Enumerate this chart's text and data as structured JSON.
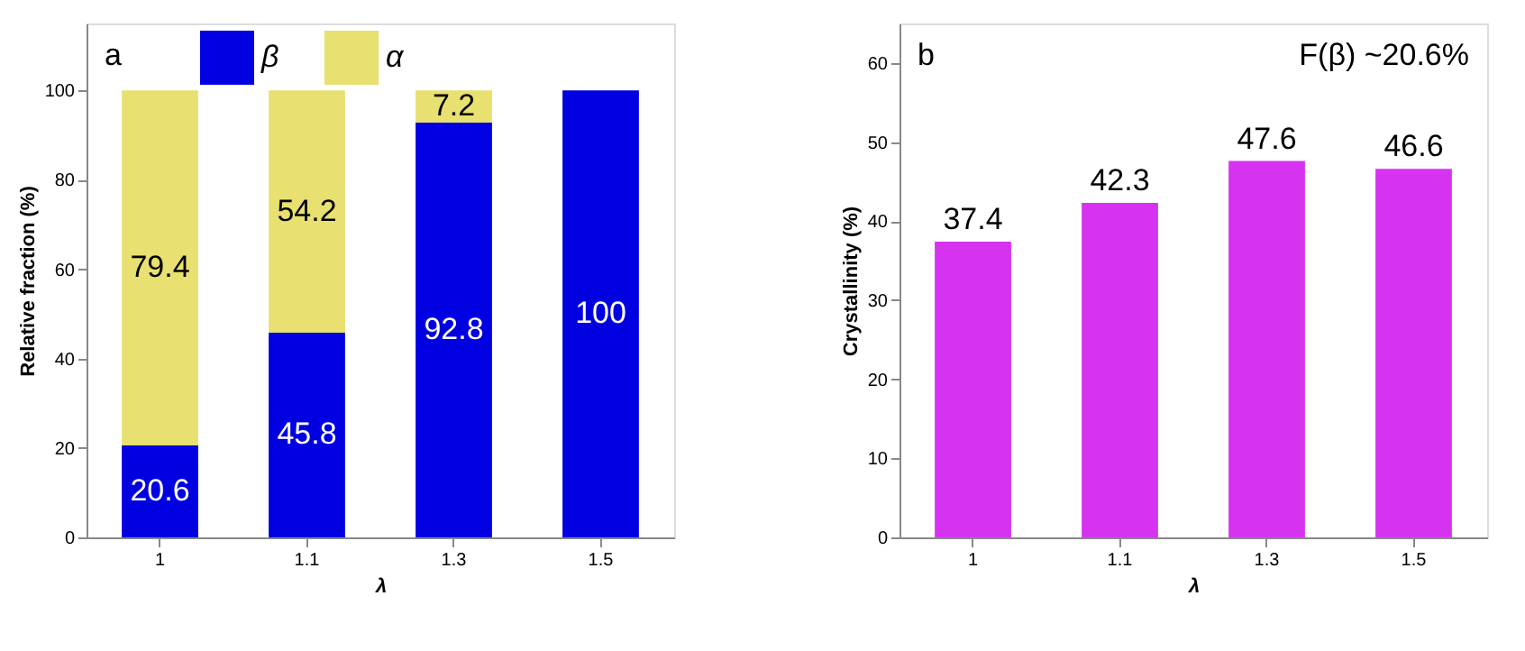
{
  "chart_data": [
    {
      "type": "bar",
      "stacked": true,
      "categories": [
        "1",
        "1.1",
        "1.3",
        "1.5"
      ],
      "xlabel": "λ",
      "ylabel": "Relative fraction (%)",
      "ylim": [
        0,
        115
      ],
      "yticks": [
        0,
        20,
        40,
        60,
        80,
        100
      ],
      "legend": "top",
      "grid": false,
      "annotations": [
        "a"
      ],
      "series": [
        {
          "name": "β",
          "color": "#0000e0",
          "values": [
            20.6,
            45.8,
            92.8,
            100
          ],
          "value_labels": [
            "20.6",
            "45.8",
            "92.8",
            "100"
          ]
        },
        {
          "name": "α",
          "color": "#e8e070",
          "values": [
            79.4,
            54.2,
            7.2,
            0
          ],
          "value_labels": [
            "79.4",
            "54.2",
            "7.2",
            null
          ]
        }
      ]
    },
    {
      "type": "bar",
      "categories": [
        "1",
        "1.1",
        "1.3",
        "1.5"
      ],
      "xlabel": "λ",
      "ylabel": "Crystallinity (%)",
      "ylim": [
        0,
        65
      ],
      "yticks": [
        0,
        10,
        20,
        30,
        40,
        50,
        60
      ],
      "grid": false,
      "data_labels": true,
      "annotations": [
        "b",
        "F(β) ~20.6%"
      ],
      "series": [
        {
          "color": "#d633f0",
          "values": [
            37.4,
            42.3,
            47.6,
            46.6
          ]
        }
      ]
    }
  ]
}
